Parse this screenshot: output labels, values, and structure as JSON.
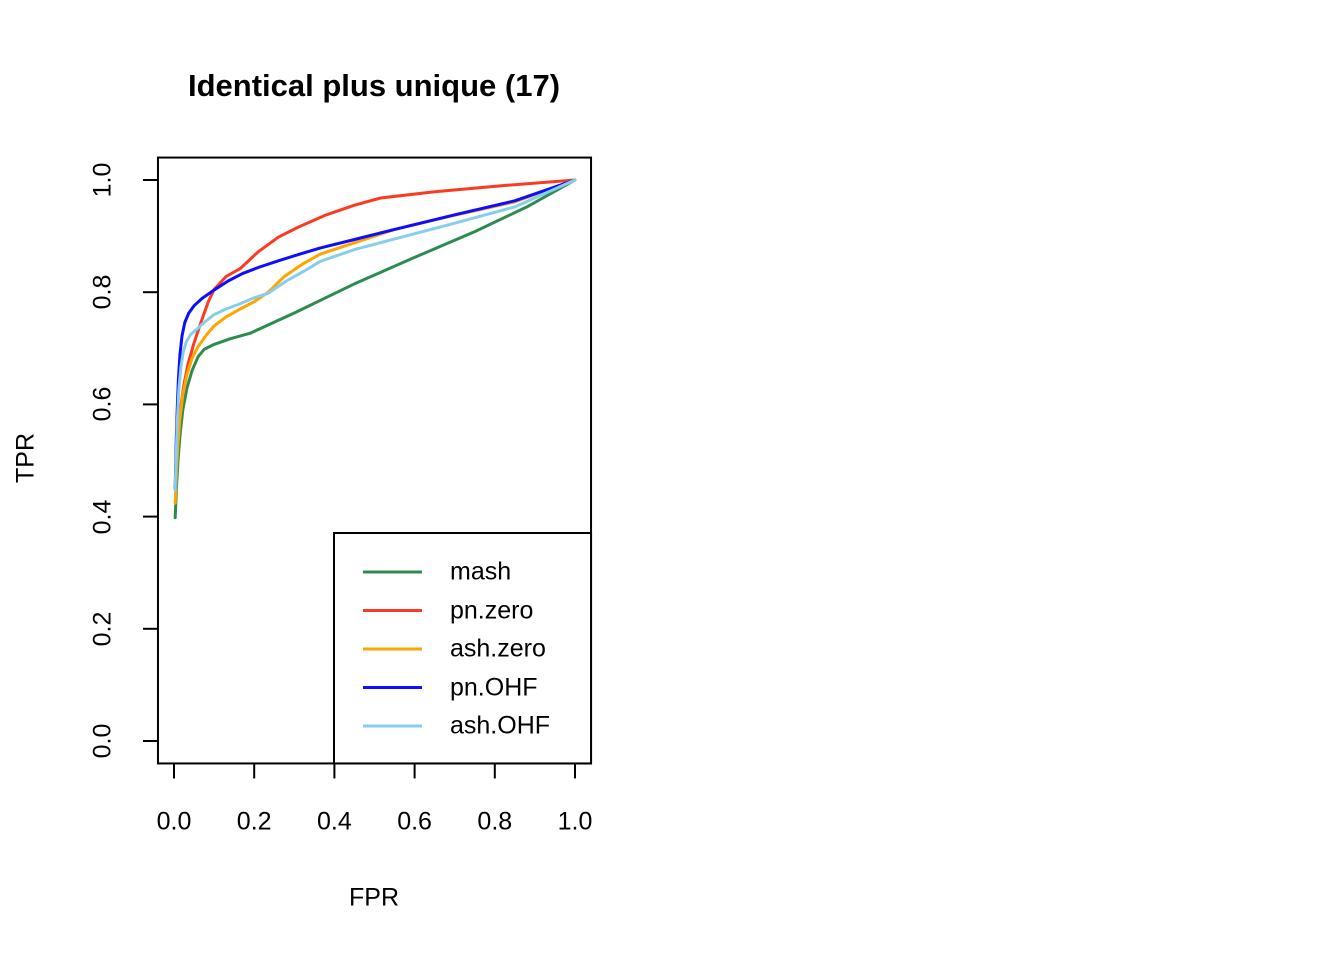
{
  "chart_data": {
    "type": "line",
    "title": "Identical plus unique (17)",
    "xlabel": "FPR",
    "ylabel": "TPR",
    "xlim": [
      0.0,
      1.0
    ],
    "ylim": [
      0.0,
      1.0
    ],
    "axis_padding_fraction": 0.04,
    "grid": false,
    "x_ticks": [
      0.0,
      0.2,
      0.4,
      0.6,
      0.8,
      1.0
    ],
    "x_tick_labels": [
      "0.0",
      "0.2",
      "0.4",
      "0.6",
      "0.8",
      "1.0"
    ],
    "y_ticks": [
      0.0,
      0.2,
      0.4,
      0.6,
      0.8,
      1.0
    ],
    "y_tick_labels": [
      "0.0",
      "0.2",
      "0.4",
      "0.6",
      "0.8",
      "1.0"
    ],
    "legend_position": "bottom-right",
    "axis_color": "#000000",
    "series": [
      {
        "name": "mash",
        "color": "#2E8B50",
        "points": [
          [
            0.003,
            0.398
          ],
          [
            0.006,
            0.45
          ],
          [
            0.01,
            0.5
          ],
          [
            0.015,
            0.545
          ],
          [
            0.022,
            0.59
          ],
          [
            0.032,
            0.628
          ],
          [
            0.045,
            0.66
          ],
          [
            0.06,
            0.685
          ],
          [
            0.075,
            0.698
          ],
          [
            0.1,
            0.707
          ],
          [
            0.14,
            0.717
          ],
          [
            0.19,
            0.727
          ],
          [
            0.3,
            0.763
          ],
          [
            0.45,
            0.815
          ],
          [
            0.6,
            0.862
          ],
          [
            0.75,
            0.908
          ],
          [
            0.88,
            0.952
          ],
          [
            1.0,
            1.0
          ]
        ]
      },
      {
        "name": "pn.zero",
        "color": "#F93B22",
        "points": [
          [
            0.003,
            0.45
          ],
          [
            0.006,
            0.5
          ],
          [
            0.01,
            0.545
          ],
          [
            0.016,
            0.59
          ],
          [
            0.024,
            0.632
          ],
          [
            0.035,
            0.672
          ],
          [
            0.05,
            0.71
          ],
          [
            0.068,
            0.748
          ],
          [
            0.085,
            0.782
          ],
          [
            0.1,
            0.805
          ],
          [
            0.13,
            0.828
          ],
          [
            0.165,
            0.842
          ],
          [
            0.21,
            0.872
          ],
          [
            0.26,
            0.898
          ],
          [
            0.31,
            0.916
          ],
          [
            0.38,
            0.938
          ],
          [
            0.45,
            0.955
          ],
          [
            0.515,
            0.968
          ],
          [
            0.65,
            0.979
          ],
          [
            0.82,
            0.99
          ],
          [
            1.0,
            1.0
          ]
        ]
      },
      {
        "name": "ash.zero",
        "color": "#FFA500",
        "points": [
          [
            0.003,
            0.424
          ],
          [
            0.006,
            0.48
          ],
          [
            0.01,
            0.53
          ],
          [
            0.015,
            0.575
          ],
          [
            0.022,
            0.617
          ],
          [
            0.032,
            0.652
          ],
          [
            0.045,
            0.682
          ],
          [
            0.06,
            0.703
          ],
          [
            0.08,
            0.723
          ],
          [
            0.1,
            0.74
          ],
          [
            0.13,
            0.756
          ],
          [
            0.165,
            0.77
          ],
          [
            0.2,
            0.783
          ],
          [
            0.235,
            0.8
          ],
          [
            0.275,
            0.828
          ],
          [
            0.32,
            0.85
          ],
          [
            0.365,
            0.868
          ],
          [
            0.45,
            0.888
          ],
          [
            0.55,
            0.912
          ],
          [
            0.7,
            0.937
          ],
          [
            0.85,
            0.961
          ],
          [
            1.0,
            1.0
          ]
        ]
      },
      {
        "name": "pn.OHF",
        "color": "#0D0DFF",
        "points": [
          [
            0.003,
            0.45
          ],
          [
            0.005,
            0.52
          ],
          [
            0.008,
            0.59
          ],
          [
            0.011,
            0.645
          ],
          [
            0.015,
            0.69
          ],
          [
            0.02,
            0.722
          ],
          [
            0.027,
            0.746
          ],
          [
            0.037,
            0.763
          ],
          [
            0.05,
            0.776
          ],
          [
            0.07,
            0.789
          ],
          [
            0.09,
            0.799
          ],
          [
            0.105,
            0.806
          ],
          [
            0.135,
            0.82
          ],
          [
            0.17,
            0.833
          ],
          [
            0.21,
            0.844
          ],
          [
            0.26,
            0.856
          ],
          [
            0.31,
            0.867
          ],
          [
            0.365,
            0.879
          ],
          [
            0.45,
            0.894
          ],
          [
            0.55,
            0.912
          ],
          [
            0.7,
            0.938
          ],
          [
            0.85,
            0.963
          ],
          [
            1.0,
            1.0
          ]
        ]
      },
      {
        "name": "ash.OHF",
        "color": "#87CEEB",
        "points": [
          [
            0.003,
            0.447
          ],
          [
            0.005,
            0.5
          ],
          [
            0.008,
            0.565
          ],
          [
            0.012,
            0.625
          ],
          [
            0.017,
            0.665
          ],
          [
            0.023,
            0.693
          ],
          [
            0.031,
            0.712
          ],
          [
            0.042,
            0.725
          ],
          [
            0.055,
            0.733
          ],
          [
            0.075,
            0.746
          ],
          [
            0.1,
            0.76
          ],
          [
            0.13,
            0.77
          ],
          [
            0.16,
            0.778
          ],
          [
            0.2,
            0.79
          ],
          [
            0.235,
            0.798
          ],
          [
            0.28,
            0.82
          ],
          [
            0.33,
            0.84
          ],
          [
            0.365,
            0.855
          ],
          [
            0.45,
            0.876
          ],
          [
            0.55,
            0.895
          ],
          [
            0.7,
            0.923
          ],
          [
            0.85,
            0.952
          ],
          [
            1.0,
            1.0
          ]
        ]
      }
    ]
  }
}
